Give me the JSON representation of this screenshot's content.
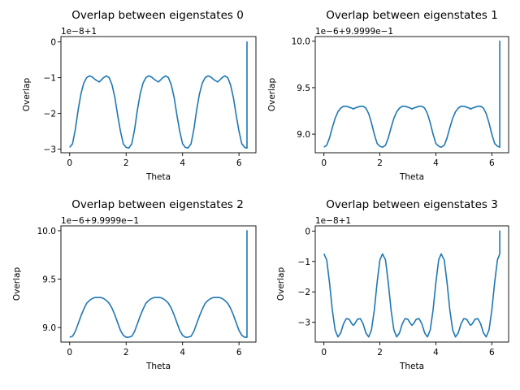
{
  "figure": {},
  "chart_data": [
    {
      "type": "line",
      "title": "Overlap between eigenstates 0",
      "xlabel": "Theta",
      "ylabel": "Overlap",
      "offset_text": "1e−8+1",
      "xlim": [
        -0.31,
        6.6
      ],
      "ylim": [
        -3.1,
        0.15
      ],
      "xticks": [
        0,
        2,
        4,
        6
      ],
      "xtick_labels": [
        "0",
        "2",
        "4",
        "6"
      ],
      "yticks": [
        0,
        -1,
        -2,
        -3
      ],
      "ytick_labels": [
        "0",
        "−1",
        "−2",
        "−3"
      ],
      "grid": false,
      "series": [
        {
          "color": "#1f77b4",
          "x": [
            0,
            0.1,
            0.2,
            0.3,
            0.4,
            0.5,
            0.6,
            0.7,
            0.8,
            0.9,
            1.0,
            1.047,
            1.1,
            1.2,
            1.3,
            1.4,
            1.5,
            1.6,
            1.7,
            1.8,
            1.9,
            2.0,
            2.094,
            2.2,
            2.3,
            2.4,
            2.5,
            2.6,
            2.7,
            2.8,
            2.9,
            3.0,
            3.1,
            3.142,
            3.2,
            3.3,
            3.4,
            3.5,
            3.6,
            3.7,
            3.8,
            3.9,
            4.0,
            4.1,
            4.189,
            4.3,
            4.4,
            4.5,
            4.6,
            4.7,
            4.8,
            4.9,
            5.0,
            5.1,
            5.2,
            5.236,
            5.3,
            5.4,
            5.5,
            5.6,
            5.7,
            5.8,
            5.9,
            6.0,
            6.1,
            6.2,
            6.283,
            6.283,
            6.283
          ],
          "y": [
            -2.95,
            -2.85,
            -2.45,
            -1.9,
            -1.45,
            -1.15,
            -1.0,
            -0.95,
            -0.98,
            -1.05,
            -1.1,
            -1.12,
            -1.08,
            -1.0,
            -0.95,
            -1.0,
            -1.2,
            -1.55,
            -2.05,
            -2.5,
            -2.85,
            -2.95,
            -2.97,
            -2.85,
            -2.45,
            -1.9,
            -1.45,
            -1.15,
            -1.0,
            -0.95,
            -0.98,
            -1.05,
            -1.1,
            -1.12,
            -1.08,
            -1.0,
            -0.95,
            -1.0,
            -1.2,
            -1.55,
            -2.05,
            -2.5,
            -2.85,
            -2.95,
            -2.97,
            -2.85,
            -2.45,
            -1.9,
            -1.45,
            -1.15,
            -1.0,
            -0.95,
            -0.98,
            -1.05,
            -1.1,
            -1.12,
            -1.08,
            -1.0,
            -0.95,
            -1.0,
            -1.2,
            -1.55,
            -2.05,
            -2.5,
            -2.85,
            -2.95,
            -2.97,
            0.0,
            -2.97
          ]
        }
      ]
    },
    {
      "type": "line",
      "title": "Overlap between eigenstates 1",
      "xlabel": "Theta",
      "ylabel": "Overlap",
      "offset_text": "1e−6+9.9999e−1",
      "xlim": [
        -0.31,
        6.6
      ],
      "ylim": [
        8.8,
        10.05
      ],
      "xticks": [
        0,
        2,
        4,
        6
      ],
      "xtick_labels": [
        "0",
        "2",
        "4",
        "6"
      ],
      "yticks": [
        9.0,
        9.5,
        10.0
      ],
      "ytick_labels": [
        "9.0",
        "9.5",
        "10.0"
      ],
      "grid": false,
      "series": [
        {
          "color": "#1f77b4",
          "x": [
            0,
            0.1,
            0.2,
            0.3,
            0.4,
            0.5,
            0.6,
            0.7,
            0.8,
            0.9,
            1.0,
            1.047,
            1.1,
            1.2,
            1.3,
            1.4,
            1.5,
            1.6,
            1.7,
            1.8,
            1.9,
            2.0,
            2.094,
            2.2,
            2.3,
            2.4,
            2.5,
            2.6,
            2.7,
            2.8,
            2.9,
            3.0,
            3.1,
            3.142,
            3.2,
            3.3,
            3.4,
            3.5,
            3.6,
            3.7,
            3.8,
            3.9,
            4.0,
            4.1,
            4.189,
            4.3,
            4.4,
            4.5,
            4.6,
            4.7,
            4.8,
            4.9,
            5.0,
            5.1,
            5.2,
            5.236,
            5.3,
            5.4,
            5.5,
            5.6,
            5.7,
            5.8,
            5.9,
            6.0,
            6.1,
            6.2,
            6.283,
            6.283,
            6.283
          ],
          "y": [
            8.86,
            8.88,
            8.96,
            9.07,
            9.17,
            9.24,
            9.28,
            9.3,
            9.3,
            9.29,
            9.28,
            9.27,
            9.28,
            9.29,
            9.3,
            9.3,
            9.28,
            9.22,
            9.12,
            9.0,
            8.9,
            8.87,
            8.86,
            8.88,
            8.96,
            9.07,
            9.17,
            9.24,
            9.28,
            9.3,
            9.3,
            9.29,
            9.28,
            9.27,
            9.28,
            9.29,
            9.3,
            9.3,
            9.28,
            9.22,
            9.12,
            9.0,
            8.9,
            8.87,
            8.86,
            8.88,
            8.96,
            9.07,
            9.17,
            9.24,
            9.28,
            9.3,
            9.3,
            9.29,
            9.28,
            9.27,
            9.28,
            9.29,
            9.3,
            9.3,
            9.28,
            9.22,
            9.12,
            9.0,
            8.9,
            8.87,
            8.86,
            10.0,
            8.86
          ]
        }
      ]
    },
    {
      "type": "line",
      "title": "Overlap between eigenstates 2",
      "xlabel": "Theta",
      "ylabel": "Overlap",
      "offset_text": "1e−6+9.9999e−1",
      "xlim": [
        -0.31,
        6.6
      ],
      "ylim": [
        8.85,
        10.05
      ],
      "xticks": [
        0,
        2,
        4,
        6
      ],
      "xtick_labels": [
        "0",
        "2",
        "4",
        "6"
      ],
      "yticks": [
        9.0,
        9.5,
        10.0
      ],
      "ytick_labels": [
        "9.0",
        "9.5",
        "10.0"
      ],
      "grid": false,
      "series": [
        {
          "color": "#1f77b4",
          "x": [
            0,
            0.1,
            0.2,
            0.3,
            0.4,
            0.5,
            0.6,
            0.7,
            0.8,
            0.9,
            1.0,
            1.047,
            1.1,
            1.2,
            1.3,
            1.4,
            1.5,
            1.6,
            1.7,
            1.8,
            1.9,
            2.0,
            2.094,
            2.2,
            2.3,
            2.4,
            2.5,
            2.6,
            2.7,
            2.8,
            2.9,
            3.0,
            3.1,
            3.142,
            3.2,
            3.3,
            3.4,
            3.5,
            3.6,
            3.7,
            3.8,
            3.9,
            4.0,
            4.1,
            4.189,
            4.3,
            4.4,
            4.5,
            4.6,
            4.7,
            4.8,
            4.9,
            5.0,
            5.1,
            5.2,
            5.236,
            5.3,
            5.4,
            5.5,
            5.6,
            5.7,
            5.8,
            5.9,
            6.0,
            6.1,
            6.2,
            6.283,
            6.283,
            6.283
          ],
          "y": [
            8.9,
            8.91,
            8.96,
            9.04,
            9.12,
            9.19,
            9.25,
            9.28,
            9.3,
            9.31,
            9.31,
            9.31,
            9.31,
            9.3,
            9.28,
            9.25,
            9.2,
            9.13,
            9.05,
            8.97,
            8.92,
            8.9,
            8.9,
            8.91,
            8.96,
            9.04,
            9.12,
            9.19,
            9.25,
            9.28,
            9.3,
            9.31,
            9.31,
            9.31,
            9.31,
            9.3,
            9.28,
            9.25,
            9.2,
            9.13,
            9.05,
            8.97,
            8.92,
            8.9,
            8.9,
            8.91,
            8.96,
            9.04,
            9.12,
            9.19,
            9.25,
            9.28,
            9.3,
            9.31,
            9.31,
            9.31,
            9.31,
            9.3,
            9.28,
            9.25,
            9.2,
            9.13,
            9.05,
            8.97,
            8.92,
            8.9,
            8.9,
            10.0,
            8.9
          ]
        }
      ]
    },
    {
      "type": "line",
      "title": "Overlap between eigenstates 3",
      "xlabel": "Theta",
      "ylabel": "Overlap",
      "offset_text": "1e−8+1",
      "xlim": [
        -0.31,
        6.6
      ],
      "ylim": [
        -3.65,
        0.17
      ],
      "xticks": [
        0,
        2,
        4,
        6
      ],
      "xtick_labels": [
        "0",
        "2",
        "4",
        "6"
      ],
      "yticks": [
        0,
        -1,
        -2,
        -3
      ],
      "ytick_labels": [
        "0",
        "−1",
        "−2",
        "−3"
      ],
      "grid": false,
      "series": [
        {
          "color": "#1f77b4",
          "x": [
            0,
            0.1,
            0.2,
            0.3,
            0.4,
            0.5,
            0.6,
            0.7,
            0.8,
            0.9,
            1.0,
            1.047,
            1.1,
            1.2,
            1.3,
            1.4,
            1.5,
            1.6,
            1.7,
            1.8,
            1.9,
            2.0,
            2.094,
            2.2,
            2.3,
            2.4,
            2.5,
            2.6,
            2.7,
            2.8,
            2.9,
            3.0,
            3.1,
            3.142,
            3.2,
            3.3,
            3.4,
            3.5,
            3.6,
            3.7,
            3.8,
            3.9,
            4.0,
            4.1,
            4.189,
            4.3,
            4.4,
            4.5,
            4.6,
            4.7,
            4.8,
            4.9,
            5.0,
            5.1,
            5.2,
            5.236,
            5.3,
            5.4,
            5.5,
            5.6,
            5.7,
            5.8,
            5.9,
            6.0,
            6.1,
            6.2,
            6.283,
            6.283,
            6.283
          ],
          "y": [
            -0.75,
            -0.95,
            -1.7,
            -2.6,
            -3.25,
            -3.48,
            -3.35,
            -3.05,
            -2.88,
            -2.9,
            -3.05,
            -3.1,
            -3.05,
            -2.9,
            -2.88,
            -3.05,
            -3.35,
            -3.48,
            -3.25,
            -2.6,
            -1.7,
            -0.95,
            -0.75,
            -0.95,
            -1.7,
            -2.6,
            -3.25,
            -3.48,
            -3.35,
            -3.05,
            -2.88,
            -2.9,
            -3.05,
            -3.1,
            -3.05,
            -2.9,
            -2.88,
            -3.05,
            -3.35,
            -3.48,
            -3.25,
            -2.6,
            -1.7,
            -0.95,
            -0.75,
            -0.95,
            -1.7,
            -2.6,
            -3.25,
            -3.48,
            -3.35,
            -3.05,
            -2.88,
            -2.9,
            -3.05,
            -3.1,
            -3.05,
            -2.9,
            -2.88,
            -3.05,
            -3.35,
            -3.48,
            -3.25,
            -2.6,
            -1.7,
            -0.95,
            -0.75,
            0.0,
            -0.75
          ]
        }
      ]
    }
  ]
}
